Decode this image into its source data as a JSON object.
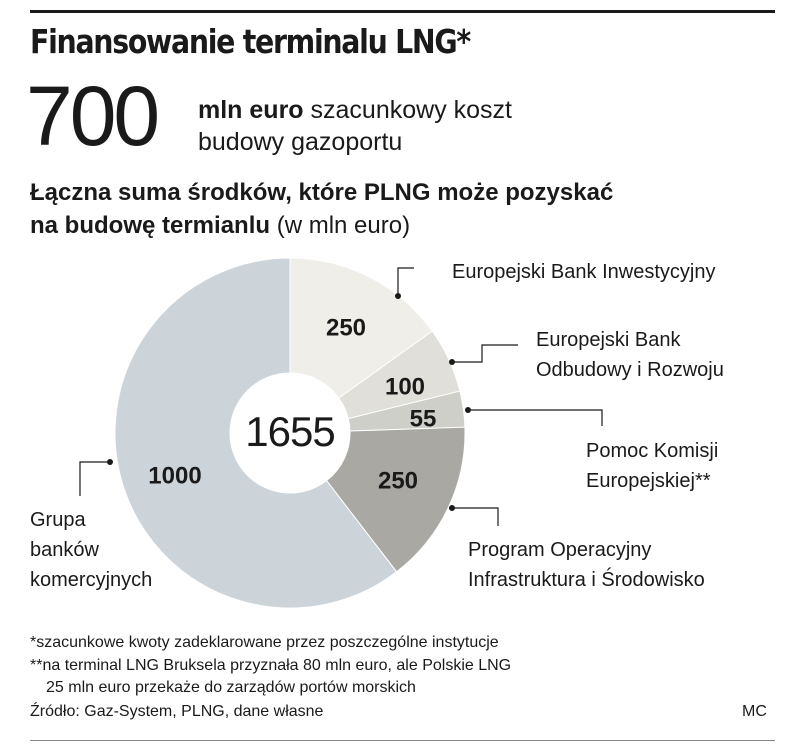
{
  "title": "Finansowanie terminalu LNG*",
  "headline": {
    "value": "700",
    "unit": "mln euro",
    "desc_line1": "szacunkowy koszt",
    "desc_line2": "budowy gazoportu"
  },
  "subtitle": {
    "bold_line1": "Łączna suma środków, które PLNG może pozyskać",
    "bold_line2": "na budowę termianlu",
    "unit_note": "(w mln euro)"
  },
  "chart_data": {
    "type": "pie",
    "total_label": "1655",
    "slices": [
      {
        "value": 250,
        "label": "250",
        "name_lines": [
          "Europejski Bank Inwestycyjny"
        ],
        "color": "#efeee9"
      },
      {
        "value": 100,
        "label": "100",
        "name_lines": [
          "Europejski Bank",
          "Odbudowy i Rozwoju"
        ],
        "color": "#e0dfd9"
      },
      {
        "value": 55,
        "label": "55",
        "name_lines": [
          "Pomoc Komisji",
          "Europejskiej**"
        ],
        "color": "#cfcfca"
      },
      {
        "value": 250,
        "label": "250",
        "name_lines": [
          "Program Operacyjny",
          "Infrastruktura i Środowisko"
        ],
        "color": "#a9a8a3"
      },
      {
        "value": 1000,
        "label": "1000",
        "name_lines": [
          "Grupa",
          "banków",
          "komercyjnych"
        ],
        "color": "#ccd4da"
      }
    ]
  },
  "footnotes": {
    "note1": "*szacunkowe kwoty zadeklarowane przez poszczególne instytucje",
    "note2_line1": "**na terminal LNG Bruksela przyznała 80 mln euro, ale Polskie LNG",
    "note2_line2": "25 mln euro przekaże do zarządów portów morskich",
    "source": "Źródło: Gaz-System, PLNG, dane własne",
    "author": "MC"
  }
}
